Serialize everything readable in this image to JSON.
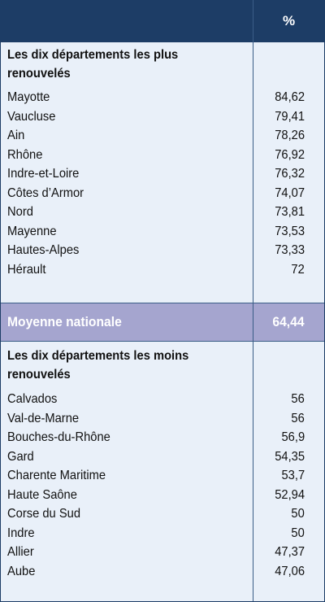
{
  "header": {
    "column_label": "%"
  },
  "top_section": {
    "title": "Les dix départements les plus renouvelés",
    "rows": [
      {
        "name": "Mayotte",
        "value": "84,62"
      },
      {
        "name": "Vaucluse",
        "value": "79,41"
      },
      {
        "name": "Ain",
        "value": "78,26"
      },
      {
        "name": "Rhône",
        "value": "76,92"
      },
      {
        "name": "Indre-et-Loire",
        "value": "76,32"
      },
      {
        "name": "Côtes d’Armor",
        "value": "74,07"
      },
      {
        "name": "Nord",
        "value": "73,81"
      },
      {
        "name": "Mayenne",
        "value": "73,53"
      },
      {
        "name": "Hautes-Alpes",
        "value": "73,33"
      },
      {
        "name": "Hérault",
        "value": "72"
      }
    ]
  },
  "national_average": {
    "label": "Moyenne nationale",
    "value": "64,44"
  },
  "bottom_section": {
    "title": "Les dix départements les moins renouvelés",
    "rows": [
      {
        "name": "Calvados",
        "value": "56"
      },
      {
        "name": "Val-de-Marne",
        "value": "56"
      },
      {
        "name": "Bouches-du-Rhône",
        "value": "56,9"
      },
      {
        "name": "Gard",
        "value": "54,35"
      },
      {
        "name": "Charente Maritime",
        "value": "53,7"
      },
      {
        "name": "Haute Saône",
        "value": "52,94"
      },
      {
        "name": "Corse du Sud",
        "value": "50"
      },
      {
        "name": "Indre",
        "value": "50"
      },
      {
        "name": "Allier",
        "value": "47,37"
      },
      {
        "name": "Aube",
        "value": "47,06"
      }
    ]
  },
  "colors": {
    "header_bg": "#1d3d66",
    "body_bg": "#e9f0f9",
    "average_bg": "#a5a5cf"
  }
}
